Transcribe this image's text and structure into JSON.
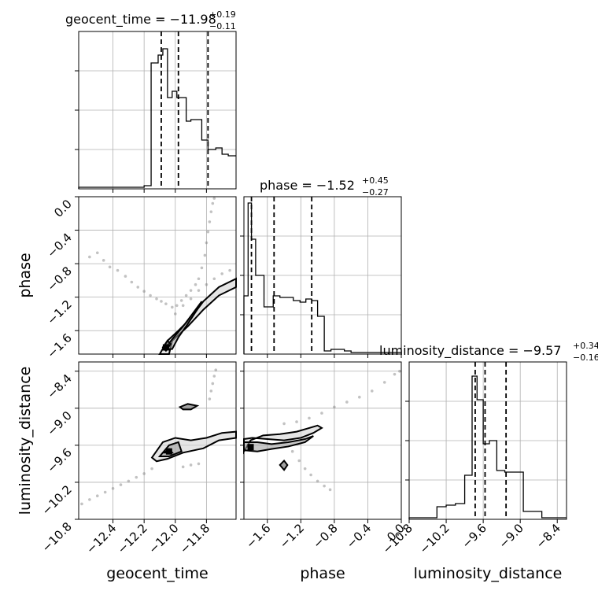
{
  "chart_data": {
    "type": "corner",
    "params": [
      "geocent_time",
      "phase",
      "luminosity_distance"
    ],
    "ranges": {
      "geocent_time": [
        -12.62,
        -11.61
      ],
      "phase": [
        -1.88,
        0.0
      ],
      "luminosity_distance": [
        -10.8,
        -8.25
      ]
    },
    "ticks": {
      "geocent_time": {
        "values": [
          -12.4,
          -12.2,
          -12.0,
          -11.8
        ],
        "labels": [
          "−12.4",
          "−12.2",
          "−12.0",
          "−11.8"
        ]
      },
      "phase": {
        "values": [
          -1.6,
          -1.2,
          -0.8,
          -0.4,
          0.0
        ],
        "labels": [
          "−1.6",
          "−1.2",
          "−0.8",
          "−0.4",
          "0.0"
        ]
      },
      "luminosity_distance": {
        "values": [
          -10.8,
          -10.2,
          -9.6,
          -9.0,
          -8.4
        ],
        "labels": [
          "−10.8",
          "−10.2",
          "−9.6",
          "−9.0",
          "−8.4"
        ]
      }
    },
    "titles": [
      {
        "param": "geocent_time",
        "main": "geocent_time = −11.98",
        "sup": "+0.19",
        "sub": "−0.11"
      },
      {
        "param": "phase",
        "main": "phase = −1.52",
        "sup": "+0.45",
        "sub": "−0.27"
      },
      {
        "param": "luminosity_distance",
        "main": "luminosity_distance = −9.57",
        "sup": "+0.34",
        "sub": "−0.16"
      }
    ],
    "axis_labels": {
      "x": [
        "geocent_time",
        "phase",
        "luminosity_distance"
      ],
      "y": [
        "phase",
        "luminosity_distance"
      ]
    },
    "quantiles": {
      "geocent_time": [
        -12.09,
        -11.98,
        -11.79
      ],
      "phase": [
        -1.79,
        -1.52,
        -1.07
      ],
      "luminosity_distance": [
        -9.73,
        -9.57,
        -9.23
      ]
    },
    "histograms": {
      "geocent_time": {
        "edges": [
          -12.62,
          -12.55,
          -12.48,
          -12.41,
          -12.34,
          -12.27,
          -12.2,
          -12.155,
          -12.11,
          -12.08,
          -12.05,
          -12.02,
          -11.99,
          -11.96,
          -11.93,
          -11.9,
          -11.87,
          -11.83,
          -11.79,
          -11.74,
          -11.7,
          -11.66,
          -11.61
        ],
        "counts": [
          0.01,
          0.01,
          0.01,
          0.01,
          0.01,
          0.01,
          0.02,
          0.8,
          0.85,
          0.89,
          0.58,
          0.62,
          0.58,
          0.58,
          0.43,
          0.44,
          0.44,
          0.31,
          0.25,
          0.26,
          0.22,
          0.21
        ]
      },
      "phase": {
        "edges": [
          -1.88,
          -1.83,
          -1.79,
          -1.74,
          -1.69,
          -1.64,
          -1.59,
          -1.53,
          -1.45,
          -1.37,
          -1.29,
          -1.21,
          -1.14,
          -1.07,
          -1.0,
          -0.92,
          -0.84,
          -0.76,
          -0.68,
          -0.6,
          -0.5,
          -0.4,
          -0.3,
          -0.2,
          -0.1,
          0.0
        ],
        "counts": [
          0.37,
          0.96,
          0.73,
          0.5,
          0.5,
          0.3,
          0.3,
          0.37,
          0.36,
          0.36,
          0.34,
          0.33,
          0.35,
          0.34,
          0.24,
          0.02,
          0.03,
          0.03,
          0.02,
          0.01,
          0.01,
          0.01,
          0.01,
          0.01,
          0.01
        ]
      },
      "luminosity_distance": {
        "edges": [
          -10.8,
          -10.55,
          -10.35,
          -10.2,
          -10.05,
          -9.9,
          -9.78,
          -9.7,
          -9.6,
          -9.5,
          -9.38,
          -9.25,
          -9.1,
          -8.95,
          -8.8,
          -8.65,
          -8.5,
          -8.35,
          -8.25
        ],
        "counts": [
          0.01,
          0.01,
          0.08,
          0.09,
          0.1,
          0.28,
          0.91,
          0.76,
          0.48,
          0.5,
          0.31,
          0.3,
          0.3,
          0.05,
          0.05,
          0.01,
          0.01,
          0.01
        ]
      }
    },
    "scatter_2d": {
      "phase_vs_geocent_time": [
        [
          -12.55,
          -0.72
        ],
        [
          -12.5,
          -0.67
        ],
        [
          -12.46,
          -0.76
        ],
        [
          -12.42,
          -0.84
        ],
        [
          -12.37,
          -0.88
        ],
        [
          -12.32,
          -0.95
        ],
        [
          -12.28,
          -1.02
        ],
        [
          -12.24,
          -1.08
        ],
        [
          -12.2,
          -1.13
        ],
        [
          -12.16,
          -1.18
        ],
        [
          -12.12,
          -1.22
        ],
        [
          -12.09,
          -1.25
        ],
        [
          -12.06,
          -1.28
        ],
        [
          -12.02,
          -1.32
        ],
        [
          -11.99,
          -1.3
        ],
        [
          -11.96,
          -1.24
        ],
        [
          -11.93,
          -1.18
        ],
        [
          -11.9,
          -1.12
        ],
        [
          -11.87,
          -1.05
        ],
        [
          -11.85,
          -0.98
        ],
        [
          -11.83,
          -0.85
        ],
        [
          -11.81,
          -0.7
        ],
        [
          -11.8,
          -0.55
        ],
        [
          -11.79,
          -0.42
        ],
        [
          -11.78,
          -0.3
        ],
        [
          -11.77,
          -0.18
        ],
        [
          -11.76,
          -0.08
        ],
        [
          -11.75,
          -0.02
        ],
        [
          -12.0,
          -1.4
        ],
        [
          -11.95,
          -1.3
        ],
        [
          -11.9,
          -1.22
        ],
        [
          -11.85,
          -1.12
        ],
        [
          -11.8,
          -1.05
        ],
        [
          -11.75,
          -0.98
        ],
        [
          -11.7,
          -0.92
        ],
        [
          -11.65,
          -0.88
        ]
      ],
      "luminosity_distance_vs_geocent_time": [
        [
          -12.6,
          -10.55
        ],
        [
          -12.55,
          -10.48
        ],
        [
          -12.5,
          -10.42
        ],
        [
          -12.45,
          -10.36
        ],
        [
          -12.4,
          -10.3
        ],
        [
          -12.35,
          -10.24
        ],
        [
          -12.3,
          -10.18
        ],
        [
          -12.25,
          -10.12
        ],
        [
          -12.2,
          -10.06
        ],
        [
          -12.15,
          -9.98
        ],
        [
          -11.78,
          -8.85
        ],
        [
          -11.77,
          -8.72
        ],
        [
          -11.76,
          -8.6
        ],
        [
          -11.75,
          -8.48
        ],
        [
          -11.74,
          -8.38
        ],
        [
          -11.95,
          -9.95
        ],
        [
          -11.9,
          -9.92
        ],
        [
          -11.85,
          -9.9
        ]
      ],
      "luminosity_distance_vs_phase": [
        [
          -1.3,
          -9.7
        ],
        [
          -1.22,
          -9.85
        ],
        [
          -1.15,
          -9.98
        ],
        [
          -1.08,
          -10.08
        ],
        [
          -1.0,
          -10.18
        ],
        [
          -0.92,
          -10.26
        ],
        [
          -0.85,
          -10.32
        ],
        [
          -1.4,
          -9.25
        ],
        [
          -1.25,
          -9.22
        ],
        [
          -1.1,
          -9.16
        ],
        [
          -0.95,
          -9.08
        ],
        [
          -0.8,
          -8.98
        ],
        [
          -0.65,
          -8.9
        ],
        [
          -0.5,
          -8.82
        ],
        [
          -0.35,
          -8.72
        ],
        [
          -0.2,
          -8.58
        ],
        [
          -0.08,
          -8.45
        ],
        [
          -0.02,
          -8.4
        ]
      ]
    },
    "contours_2d": {
      "phase_vs_geocent_time": [
        [
          [
            -12.1,
            -1.88
          ],
          [
            -12.05,
            -1.72
          ],
          [
            -11.98,
            -1.6
          ],
          [
            -11.9,
            -1.45
          ],
          [
            -11.82,
            -1.25
          ],
          [
            -11.72,
            -1.08
          ],
          [
            -11.61,
            -0.98
          ],
          [
            -11.61,
            -1.08
          ],
          [
            -11.72,
            -1.18
          ],
          [
            -11.82,
            -1.35
          ],
          [
            -11.92,
            -1.55
          ],
          [
            -12.02,
            -1.72
          ],
          [
            -12.04,
            -1.88
          ]
        ],
        [
          [
            -12.07,
            -1.82
          ],
          [
            -12.01,
            -1.68
          ],
          [
            -11.95,
            -1.55
          ],
          [
            -11.89,
            -1.4
          ],
          [
            -11.83,
            -1.25
          ],
          [
            -11.86,
            -1.35
          ],
          [
            -11.92,
            -1.52
          ],
          [
            -11.98,
            -1.68
          ],
          [
            -12.02,
            -1.82
          ]
        ],
        [
          [
            -12.08,
            -1.8
          ],
          [
            -12.05,
            -1.72
          ],
          [
            -12.03,
            -1.76
          ],
          [
            -12.06,
            -1.84
          ]
        ]
      ],
      "luminosity_distance_vs_geocent_time": [
        [
          [
            -12.15,
            -9.8
          ],
          [
            -12.08,
            -9.55
          ],
          [
            -12.0,
            -9.48
          ],
          [
            -11.9,
            -9.52
          ],
          [
            -11.8,
            -9.48
          ],
          [
            -11.7,
            -9.4
          ],
          [
            -11.61,
            -9.38
          ],
          [
            -11.61,
            -9.48
          ],
          [
            -11.72,
            -9.52
          ],
          [
            -11.82,
            -9.65
          ],
          [
            -11.95,
            -9.72
          ],
          [
            -12.05,
            -9.82
          ],
          [
            -12.12,
            -9.86
          ]
        ],
        [
          [
            -12.1,
            -9.78
          ],
          [
            -12.04,
            -9.6
          ],
          [
            -11.98,
            -9.55
          ],
          [
            -11.96,
            -9.7
          ],
          [
            -12.04,
            -9.78
          ]
        ],
        [
          [
            -12.07,
            -9.72
          ],
          [
            -12.04,
            -9.66
          ],
          [
            -12.02,
            -9.72
          ]
        ],
        [
          [
            -11.97,
            -8.98
          ],
          [
            -11.92,
            -8.93
          ],
          [
            -11.86,
            -8.96
          ],
          [
            -11.9,
            -9.02
          ],
          [
            -11.95,
            -9.02
          ]
        ]
      ],
      "luminosity_distance_vs_phase": [
        [
          [
            -1.88,
            -9.5
          ],
          [
            -1.78,
            -9.48
          ],
          [
            -1.6,
            -9.5
          ],
          [
            -1.4,
            -9.52
          ],
          [
            -1.2,
            -9.48
          ],
          [
            -1.05,
            -9.4
          ],
          [
            -0.95,
            -9.32
          ],
          [
            -1.0,
            -9.28
          ],
          [
            -1.1,
            -9.32
          ],
          [
            -1.25,
            -9.38
          ],
          [
            -1.45,
            -9.42
          ],
          [
            -1.65,
            -9.44
          ],
          [
            -1.8,
            -9.52
          ],
          [
            -1.88,
            -9.7
          ]
        ],
        [
          [
            -1.88,
            -9.55
          ],
          [
            -1.72,
            -9.55
          ],
          [
            -1.55,
            -9.58
          ],
          [
            -1.35,
            -9.55
          ],
          [
            -1.15,
            -9.5
          ],
          [
            -1.05,
            -9.45
          ],
          [
            -1.15,
            -9.55
          ],
          [
            -1.35,
            -9.62
          ],
          [
            -1.55,
            -9.66
          ],
          [
            -1.72,
            -9.7
          ],
          [
            -1.88,
            -9.68
          ]
        ],
        [
          [
            -1.45,
            -9.92
          ],
          [
            -1.4,
            -9.85
          ],
          [
            -1.36,
            -9.92
          ],
          [
            -1.4,
            -10.0
          ]
        ]
      ]
    },
    "contour_peaks": {
      "phase_vs_geocent_time": [
        -12.06,
        -1.8
      ],
      "luminosity_distance_vs_geocent_time": [
        -12.04,
        -9.7
      ],
      "luminosity_distance_vs_phase": [
        -1.8,
        -9.63
      ]
    },
    "grid": true
  }
}
